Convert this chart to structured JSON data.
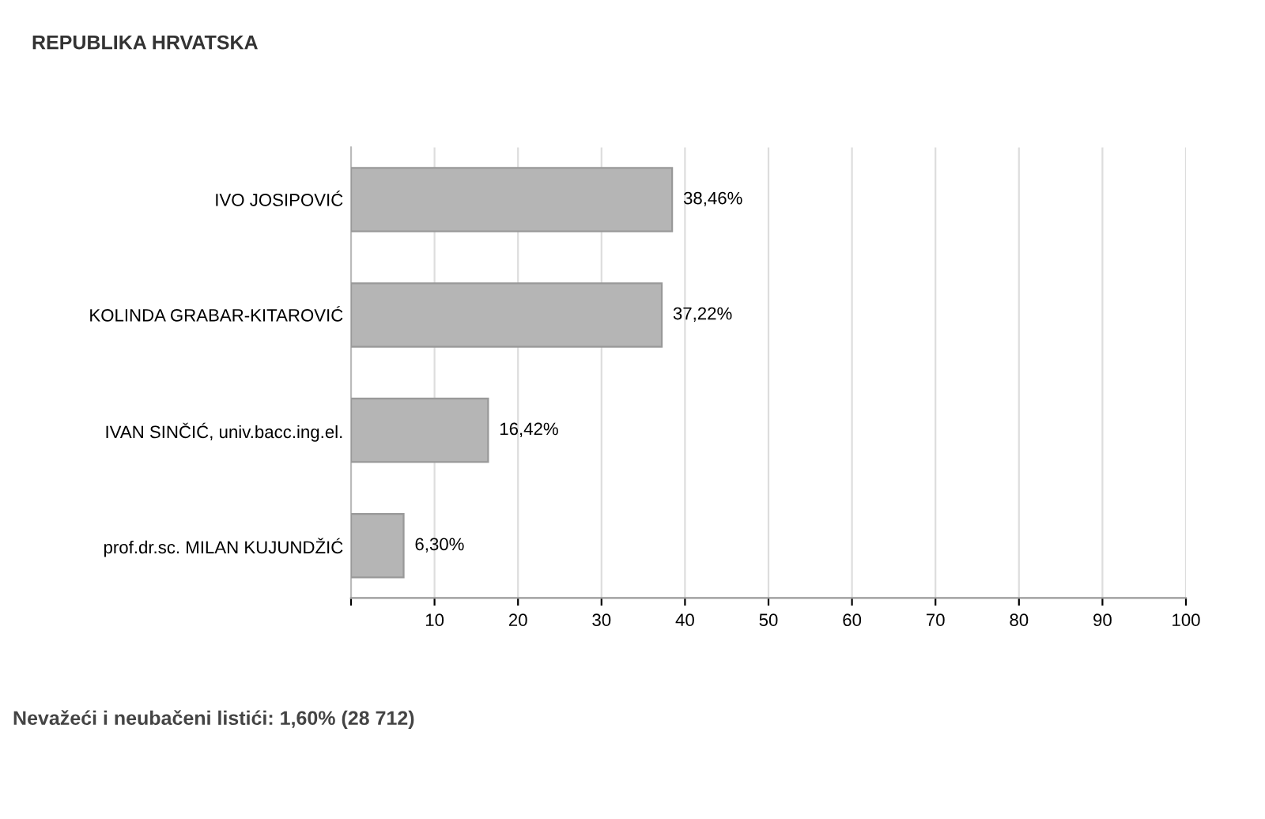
{
  "chart_data": {
    "type": "bar",
    "orientation": "horizontal",
    "title": "REPUBLIKA HRVATSKA",
    "categories": [
      "IVO JOSIPOVIĆ",
      "KOLINDA GRABAR-KITAROVIĆ",
      "IVAN SINČIĆ, univ.bacc.ing.el.",
      "prof.dr.sc. MILAN KUJUNDŽIĆ"
    ],
    "values": [
      38.46,
      37.22,
      16.42,
      6.3
    ],
    "value_labels": [
      "38,46%",
      "37,22%",
      "16,42%",
      "6,30%"
    ],
    "color": "#b5b5b5",
    "xlim": [
      0,
      100
    ],
    "xticks": [
      {
        "value": 0,
        "label": null
      },
      10,
      20,
      30,
      40,
      50,
      60,
      70,
      80,
      90,
      100
    ],
    "grid": "x",
    "legend": false,
    "annotations": [
      "Nevažeći i neubačeni listići: 1,60% (28 712)"
    ]
  }
}
